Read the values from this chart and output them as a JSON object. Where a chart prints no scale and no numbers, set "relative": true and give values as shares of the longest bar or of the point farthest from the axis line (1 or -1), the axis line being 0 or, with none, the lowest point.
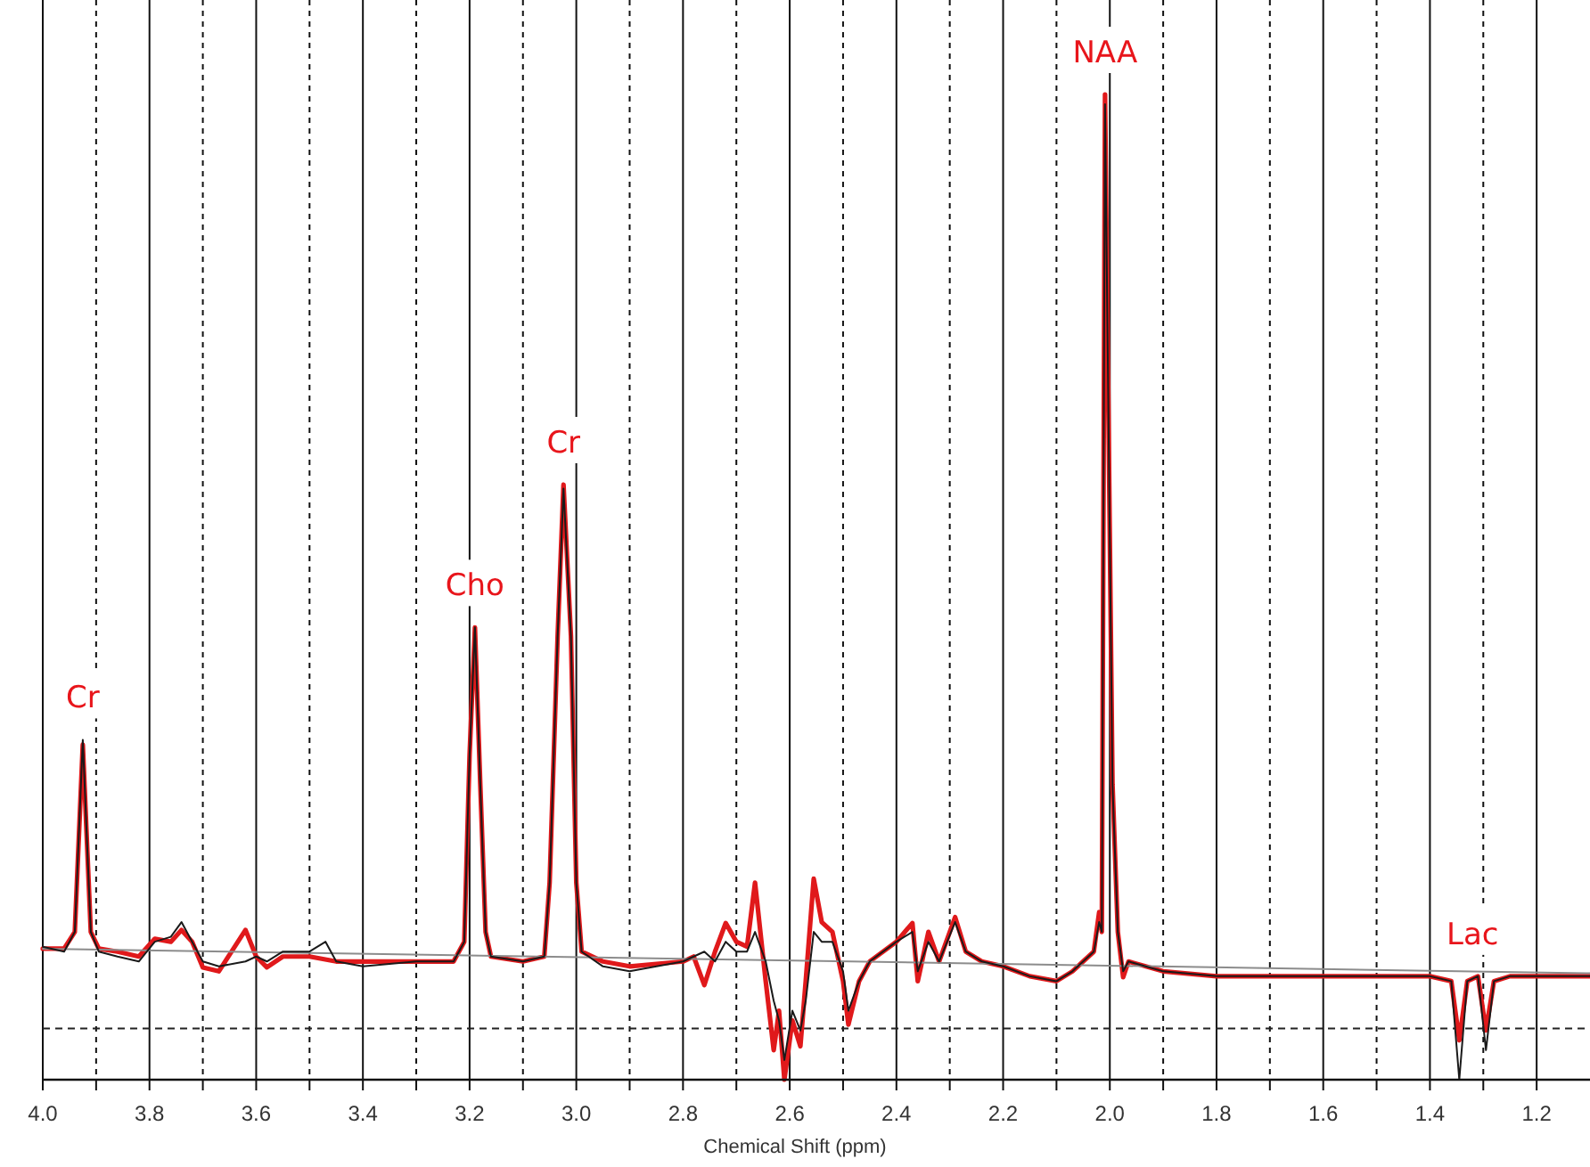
{
  "chart_data": {
    "type": "line",
    "relative": true,
    "xlabel": "Chemical Shift (ppm)",
    "xlim": [
      4.0,
      1.1
    ],
    "xticks": [
      {
        "value": 4,
        "label": "4.0"
      },
      {
        "value": 3.9,
        "label": null
      },
      3.8,
      {
        "value": 3.7,
        "label": null
      },
      3.6,
      {
        "value": 3.5,
        "label": null
      },
      3.4,
      {
        "value": 3.3,
        "label": null
      },
      3.2,
      {
        "value": 3.1,
        "label": null
      },
      {
        "value": 3,
        "label": "3.0"
      },
      {
        "value": 2.9,
        "label": null
      },
      2.8,
      {
        "value": 2.7,
        "label": null
      },
      2.6,
      {
        "value": 2.5,
        "label": null
      },
      2.4,
      {
        "value": 2.3,
        "label": null
      },
      2.2,
      {
        "value": 2.1,
        "label": null
      },
      {
        "value": 2,
        "label": "2.0"
      },
      {
        "value": 1.9,
        "label": null
      },
      1.8,
      {
        "value": 1.7,
        "label": null
      },
      1.6,
      {
        "value": 1.5,
        "label": null
      },
      1.4,
      {
        "value": 1.3,
        "label": null
      },
      1.2
    ],
    "grid": "x",
    "tick_labels": "x",
    "ref_lines": [
      {
        "axis": "y",
        "value": 0.052,
        "line_style": "dashed",
        "color": "#222222"
      }
    ],
    "series": [
      {
        "color": "#8c8c8c",
        "x": [
          4.0,
          1.1
        ],
        "values": [
          0.133,
          0.108
        ]
      },
      {
        "color": "#1a1a1a",
        "x": [
          4.0,
          3.96,
          3.94,
          3.925,
          3.91,
          3.895,
          3.86,
          3.82,
          3.79,
          3.76,
          3.74,
          3.72,
          3.7,
          3.67,
          3.62,
          3.6,
          3.58,
          3.55,
          3.5,
          3.47,
          3.45,
          3.4,
          3.3,
          3.23,
          3.21,
          3.2,
          3.19,
          3.18,
          3.17,
          3.16,
          3.1,
          3.06,
          3.05,
          3.035,
          3.024,
          3.01,
          3.0,
          2.99,
          2.95,
          2.9,
          2.8,
          2.78,
          2.76,
          2.74,
          2.72,
          2.7,
          2.68,
          2.665,
          2.645,
          2.63,
          2.62,
          2.61,
          2.595,
          2.58,
          2.57,
          2.555,
          2.54,
          2.52,
          2.5,
          2.49,
          2.47,
          2.45,
          2.4,
          2.37,
          2.36,
          2.34,
          2.32,
          2.29,
          2.27,
          2.24,
          2.2,
          2.15,
          2.1,
          2.07,
          2.05,
          2.03,
          2.02,
          2.015,
          2.009,
          1.995,
          1.985,
          1.975,
          1.965,
          1.9,
          1.8,
          1.7,
          1.6,
          1.5,
          1.4,
          1.36,
          1.345,
          1.33,
          1.31,
          1.295,
          1.28,
          1.25,
          1.2,
          1.1
        ],
        "values": [
          0.135,
          0.13,
          0.15,
          0.345,
          0.15,
          0.13,
          0.125,
          0.12,
          0.14,
          0.145,
          0.16,
          0.14,
          0.12,
          0.115,
          0.12,
          0.125,
          0.12,
          0.13,
          0.13,
          0.14,
          0.12,
          0.115,
          0.12,
          0.12,
          0.14,
          0.33,
          0.459,
          0.3,
          0.15,
          0.125,
          0.12,
          0.125,
          0.2,
          0.45,
          0.6,
          0.45,
          0.2,
          0.13,
          0.115,
          0.11,
          0.12,
          0.125,
          0.13,
          0.12,
          0.14,
          0.13,
          0.13,
          0.15,
          0.12,
          0.08,
          0.06,
          0.02,
          0.07,
          0.05,
          0.08,
          0.15,
          0.14,
          0.14,
          0.11,
          0.07,
          0.1,
          0.12,
          0.14,
          0.15,
          0.11,
          0.14,
          0.12,
          0.16,
          0.13,
          0.12,
          0.115,
          0.105,
          0.1,
          0.11,
          0.12,
          0.13,
          0.16,
          0.15,
          0.99,
          0.3,
          0.15,
          0.11,
          0.12,
          0.11,
          0.105,
          0.105,
          0.105,
          0.105,
          0.105,
          0.1,
          0.0,
          0.1,
          0.105,
          0.03,
          0.1,
          0.105,
          0.105,
          0.105
        ]
      },
      {
        "color": "#e0191b",
        "x": [
          4.0,
          3.96,
          3.94,
          3.925,
          3.91,
          3.895,
          3.86,
          3.82,
          3.79,
          3.76,
          3.74,
          3.72,
          3.7,
          3.67,
          3.62,
          3.6,
          3.58,
          3.55,
          3.5,
          3.45,
          3.4,
          3.3,
          3.23,
          3.21,
          3.2,
          3.19,
          3.18,
          3.17,
          3.16,
          3.1,
          3.06,
          3.05,
          3.035,
          3.024,
          3.01,
          3.0,
          2.99,
          2.95,
          2.9,
          2.8,
          2.78,
          2.76,
          2.74,
          2.72,
          2.7,
          2.68,
          2.665,
          2.645,
          2.63,
          2.62,
          2.61,
          2.595,
          2.58,
          2.57,
          2.555,
          2.54,
          2.52,
          2.5,
          2.49,
          2.47,
          2.45,
          2.4,
          2.37,
          2.36,
          2.34,
          2.32,
          2.29,
          2.27,
          2.24,
          2.2,
          2.15,
          2.1,
          2.07,
          2.05,
          2.03,
          2.02,
          2.015,
          2.009,
          1.995,
          1.985,
          1.975,
          1.965,
          1.9,
          1.8,
          1.7,
          1.6,
          1.5,
          1.4,
          1.36,
          1.345,
          1.33,
          1.31,
          1.295,
          1.28,
          1.25,
          1.2,
          1.1
        ],
        "values": [
          0.133,
          0.133,
          0.15,
          0.34,
          0.15,
          0.133,
          0.13,
          0.125,
          0.143,
          0.14,
          0.152,
          0.14,
          0.114,
          0.11,
          0.152,
          0.125,
          0.114,
          0.125,
          0.125,
          0.12,
          0.12,
          0.12,
          0.12,
          0.14,
          0.33,
          0.459,
          0.3,
          0.15,
          0.125,
          0.12,
          0.125,
          0.2,
          0.45,
          0.604,
          0.45,
          0.2,
          0.13,
          0.12,
          0.115,
          0.12,
          0.125,
          0.096,
          0.13,
          0.159,
          0.14,
          0.135,
          0.2,
          0.1,
          0.03,
          0.07,
          0.0,
          0.06,
          0.034,
          0.1,
          0.204,
          0.16,
          0.15,
          0.1,
          0.056,
          0.1,
          0.12,
          0.14,
          0.159,
          0.1,
          0.15,
          0.12,
          0.165,
          0.13,
          0.12,
          0.115,
          0.105,
          0.1,
          0.11,
          0.12,
          0.13,
          0.17,
          0.15,
          1.0,
          0.3,
          0.15,
          0.104,
          0.12,
          0.11,
          0.105,
          0.105,
          0.105,
          0.105,
          0.105,
          0.1,
          0.04,
          0.1,
          0.105,
          0.05,
          0.1,
          0.105,
          0.105,
          0.105
        ]
      }
    ],
    "annotations": [
      {
        "text": "Cr",
        "x": 3.925,
        "y": 0.345
      },
      {
        "text": "Cho",
        "x": 3.19,
        "y": 0.459
      },
      {
        "text": "Cr",
        "x": 3.024,
        "y": 0.604
      },
      {
        "text": "NAA",
        "x": 2.009,
        "y": 1.0
      },
      {
        "text": "Lac",
        "x": 1.32,
        "y": 0.105
      }
    ]
  }
}
